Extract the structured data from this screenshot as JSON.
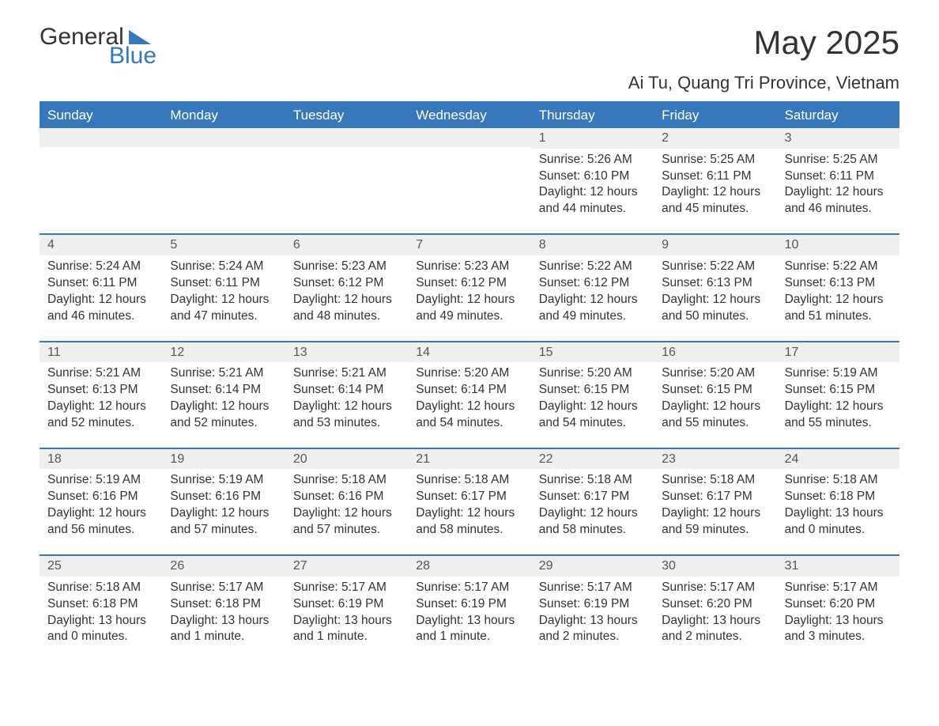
{
  "logo": {
    "word1": "General",
    "word2": "Blue"
  },
  "title": "May 2025",
  "location": "Ai Tu, Quang Tri Province, Vietnam",
  "colors": {
    "header_bg": "#3777bc",
    "header_text": "#ffffff",
    "daynum_bg": "#efefef",
    "body_text": "#333333",
    "page_bg": "#ffffff"
  },
  "layout": {
    "type": "table",
    "columns": 7,
    "rows": 5,
    "week_border_color": "#3777bc",
    "cell_font_size": 15.5,
    "header_font_size": 17,
    "title_font_size": 42,
    "location_font_size": 22
  },
  "daysOfWeek": [
    "Sunday",
    "Monday",
    "Tuesday",
    "Wednesday",
    "Thursday",
    "Friday",
    "Saturday"
  ],
  "weeks": [
    [
      null,
      null,
      null,
      null,
      {
        "n": "1",
        "sunrise": "5:26 AM",
        "sunset": "6:10 PM",
        "daylight": "12 hours and 44 minutes."
      },
      {
        "n": "2",
        "sunrise": "5:25 AM",
        "sunset": "6:11 PM",
        "daylight": "12 hours and 45 minutes."
      },
      {
        "n": "3",
        "sunrise": "5:25 AM",
        "sunset": "6:11 PM",
        "daylight": "12 hours and 46 minutes."
      }
    ],
    [
      {
        "n": "4",
        "sunrise": "5:24 AM",
        "sunset": "6:11 PM",
        "daylight": "12 hours and 46 minutes."
      },
      {
        "n": "5",
        "sunrise": "5:24 AM",
        "sunset": "6:11 PM",
        "daylight": "12 hours and 47 minutes."
      },
      {
        "n": "6",
        "sunrise": "5:23 AM",
        "sunset": "6:12 PM",
        "daylight": "12 hours and 48 minutes."
      },
      {
        "n": "7",
        "sunrise": "5:23 AM",
        "sunset": "6:12 PM",
        "daylight": "12 hours and 49 minutes."
      },
      {
        "n": "8",
        "sunrise": "5:22 AM",
        "sunset": "6:12 PM",
        "daylight": "12 hours and 49 minutes."
      },
      {
        "n": "9",
        "sunrise": "5:22 AM",
        "sunset": "6:13 PM",
        "daylight": "12 hours and 50 minutes."
      },
      {
        "n": "10",
        "sunrise": "5:22 AM",
        "sunset": "6:13 PM",
        "daylight": "12 hours and 51 minutes."
      }
    ],
    [
      {
        "n": "11",
        "sunrise": "5:21 AM",
        "sunset": "6:13 PM",
        "daylight": "12 hours and 52 minutes."
      },
      {
        "n": "12",
        "sunrise": "5:21 AM",
        "sunset": "6:14 PM",
        "daylight": "12 hours and 52 minutes."
      },
      {
        "n": "13",
        "sunrise": "5:21 AM",
        "sunset": "6:14 PM",
        "daylight": "12 hours and 53 minutes."
      },
      {
        "n": "14",
        "sunrise": "5:20 AM",
        "sunset": "6:14 PM",
        "daylight": "12 hours and 54 minutes."
      },
      {
        "n": "15",
        "sunrise": "5:20 AM",
        "sunset": "6:15 PM",
        "daylight": "12 hours and 54 minutes."
      },
      {
        "n": "16",
        "sunrise": "5:20 AM",
        "sunset": "6:15 PM",
        "daylight": "12 hours and 55 minutes."
      },
      {
        "n": "17",
        "sunrise": "5:19 AM",
        "sunset": "6:15 PM",
        "daylight": "12 hours and 55 minutes."
      }
    ],
    [
      {
        "n": "18",
        "sunrise": "5:19 AM",
        "sunset": "6:16 PM",
        "daylight": "12 hours and 56 minutes."
      },
      {
        "n": "19",
        "sunrise": "5:19 AM",
        "sunset": "6:16 PM",
        "daylight": "12 hours and 57 minutes."
      },
      {
        "n": "20",
        "sunrise": "5:18 AM",
        "sunset": "6:16 PM",
        "daylight": "12 hours and 57 minutes."
      },
      {
        "n": "21",
        "sunrise": "5:18 AM",
        "sunset": "6:17 PM",
        "daylight": "12 hours and 58 minutes."
      },
      {
        "n": "22",
        "sunrise": "5:18 AM",
        "sunset": "6:17 PM",
        "daylight": "12 hours and 58 minutes."
      },
      {
        "n": "23",
        "sunrise": "5:18 AM",
        "sunset": "6:17 PM",
        "daylight": "12 hours and 59 minutes."
      },
      {
        "n": "24",
        "sunrise": "5:18 AM",
        "sunset": "6:18 PM",
        "daylight": "13 hours and 0 minutes."
      }
    ],
    [
      {
        "n": "25",
        "sunrise": "5:18 AM",
        "sunset": "6:18 PM",
        "daylight": "13 hours and 0 minutes."
      },
      {
        "n": "26",
        "sunrise": "5:17 AM",
        "sunset": "6:18 PM",
        "daylight": "13 hours and 1 minute."
      },
      {
        "n": "27",
        "sunrise": "5:17 AM",
        "sunset": "6:19 PM",
        "daylight": "13 hours and 1 minute."
      },
      {
        "n": "28",
        "sunrise": "5:17 AM",
        "sunset": "6:19 PM",
        "daylight": "13 hours and 1 minute."
      },
      {
        "n": "29",
        "sunrise": "5:17 AM",
        "sunset": "6:19 PM",
        "daylight": "13 hours and 2 minutes."
      },
      {
        "n": "30",
        "sunrise": "5:17 AM",
        "sunset": "6:20 PM",
        "daylight": "13 hours and 2 minutes."
      },
      {
        "n": "31",
        "sunrise": "5:17 AM",
        "sunset": "6:20 PM",
        "daylight": "13 hours and 3 minutes."
      }
    ]
  ],
  "labels": {
    "sunrise_prefix": "Sunrise: ",
    "sunset_prefix": "Sunset: ",
    "daylight_prefix": "Daylight: "
  }
}
